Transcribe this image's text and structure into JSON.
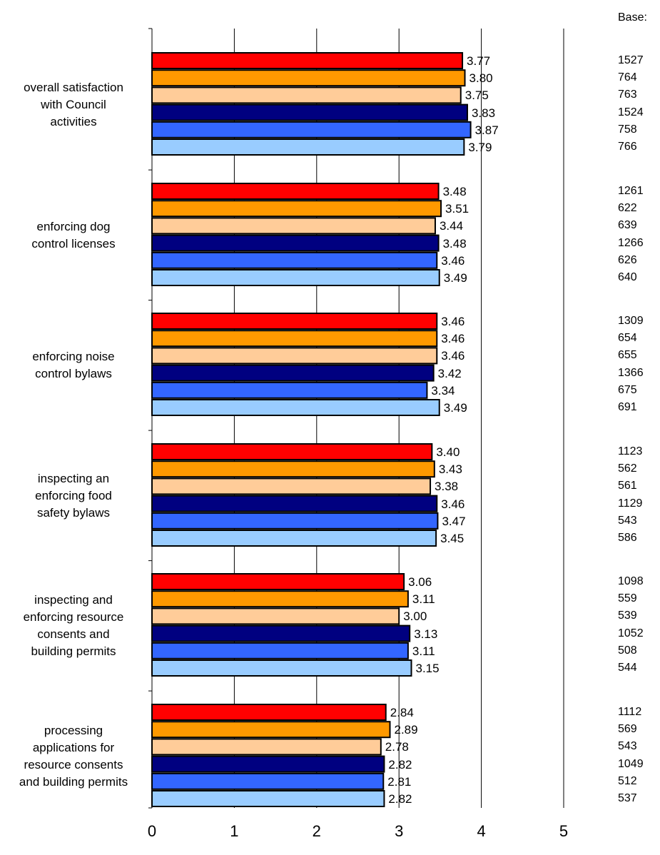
{
  "chart_data": {
    "type": "bar",
    "orientation": "horizontal",
    "title": "",
    "xlabel": "",
    "ylabel": "",
    "xlim": [
      0,
      5
    ],
    "xticks": [
      "0",
      "1",
      "2",
      "3",
      "4",
      "5"
    ],
    "grid": true,
    "legend": "none",
    "base_header": "Base:",
    "categories": [
      "overall satisfaction\nwith Council\nactivities",
      "enforcing dog\ncontrol licenses",
      "enforcing noise\ncontrol bylaws",
      "inspecting an\nenforcing food\nsafety bylaws",
      "inspecting and\nenforcing resource\nconsents and\nbuilding permits",
      "processing\napplications for\nresource consents\nand building permits"
    ],
    "series": [
      {
        "color": "#ff0000",
        "values": [
          3.77,
          3.48,
          3.46,
          3.4,
          3.06,
          2.84
        ],
        "labels": [
          "3.77",
          "3.48",
          "3.46",
          "3.40",
          "3.06",
          "2.84"
        ],
        "base": [
          "1527",
          "1261",
          "1309",
          "1123",
          "1098",
          "1112"
        ]
      },
      {
        "color": "#ff9900",
        "values": [
          3.8,
          3.51,
          3.46,
          3.43,
          3.11,
          2.89
        ],
        "labels": [
          "3.80",
          "3.51",
          "3.46",
          "3.43",
          "3.11",
          "2.89"
        ],
        "base": [
          "764",
          "622",
          "654",
          "562",
          "559",
          "569"
        ]
      },
      {
        "color": "#ffcc99",
        "values": [
          3.75,
          3.44,
          3.46,
          3.38,
          3.0,
          2.78
        ],
        "labels": [
          "3.75",
          "3.44",
          "3.46",
          "3.38",
          "3.00",
          "2.78"
        ],
        "base": [
          "763",
          "639",
          "655",
          "561",
          "539",
          "543"
        ]
      },
      {
        "color": "#000080",
        "values": [
          3.83,
          3.48,
          3.42,
          3.46,
          3.13,
          2.82
        ],
        "labels": [
          "3.83",
          "3.48",
          "3.42",
          "3.46",
          "3.13",
          "2.82"
        ],
        "base": [
          "1524",
          "1266",
          "1366",
          "1129",
          "1052",
          "1049"
        ]
      },
      {
        "color": "#3366ff",
        "values": [
          3.87,
          3.46,
          3.34,
          3.47,
          3.11,
          2.81
        ],
        "labels": [
          "3.87",
          "3.46",
          "3.34",
          "3.47",
          "3.11",
          "2.81"
        ],
        "base": [
          "758",
          "626",
          "675",
          "543",
          "508",
          "512"
        ]
      },
      {
        "color": "#99ccff",
        "values": [
          3.79,
          3.49,
          3.49,
          3.45,
          3.15,
          2.82
        ],
        "labels": [
          "3.79",
          "3.49",
          "3.49",
          "3.45",
          "3.15",
          "2.82"
        ],
        "base": [
          "766",
          "640",
          "691",
          "586",
          "544",
          "537"
        ]
      }
    ]
  }
}
